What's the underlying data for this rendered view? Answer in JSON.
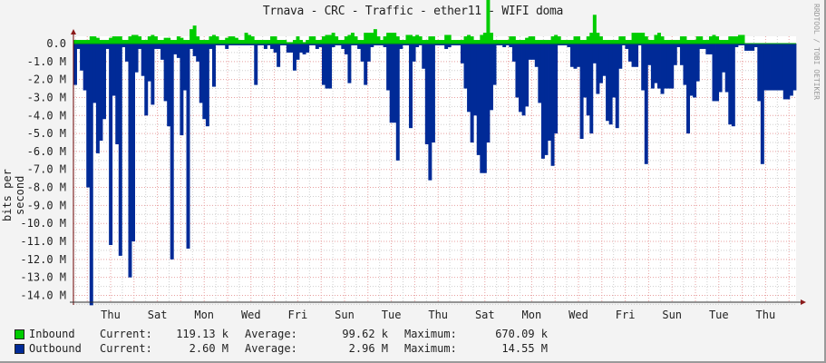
{
  "title": "Trnava - CRC - Traffic - ether11 - WIFI doma",
  "watermark": "RRDTOOL / TOBI OETIKER",
  "colors": {
    "inbound": "#00cc00",
    "outbound": "#002a97",
    "grid_major": "#e8a0a0",
    "grid_minor": "#c8c8c8",
    "axis": "#6b0000",
    "background": "#f3f3f3",
    "plot_bg": "#ffffff"
  },
  "legend": [
    {
      "name": "Inbound",
      "color": "#00cc00",
      "current_label": "Current:",
      "current": "119.13 k",
      "average_label": "Average:",
      "average": "99.62 k",
      "maximum_label": "Maximum:",
      "maximum": "670.09 k"
    },
    {
      "name": "Outbound",
      "color": "#002a97",
      "current_label": "Current:",
      "current": "2.60 M",
      "average_label": "Average:",
      "average": "2.96 M",
      "maximum_label": "Maximum:",
      "maximum": "14.55 M"
    }
  ],
  "chart_data": {
    "type": "area",
    "title": "Trnava - CRC - Traffic - ether11 - WIFI doma",
    "xlabel": "",
    "ylabel": "bits per second",
    "y_tick_labels": [
      "0.0",
      "-1.0 M",
      "-2.0 M",
      "-3.0 M",
      "-4.0 M",
      "-5.0 M",
      "-6.0 M",
      "-7.0 M",
      "-8.0 M",
      "-9.0 M",
      "-10.0 M",
      "-11.0 M",
      "-12.0 M",
      "-13.0 M",
      "-14.0 M"
    ],
    "ylim": [
      -14.6,
      0.3
    ],
    "x_tick_labels": [
      "Thu",
      "Sat",
      "Mon",
      "Wed",
      "Fri",
      "Sun",
      "Tue",
      "Thu",
      "Sat",
      "Mon",
      "Wed",
      "Fri",
      "Sun",
      "Tue",
      "Thu"
    ],
    "grid": true,
    "legend_position": "bottom",
    "series": [
      {
        "name": "Inbound",
        "unit": "M",
        "values": [
          0.05,
          0.05,
          0.05,
          0.05,
          0.05,
          0.1,
          0.1,
          0.08,
          0.05,
          0.05,
          0.05,
          0.08,
          0.1,
          0.1,
          0.1,
          0.05,
          0.05,
          0.1,
          0.12,
          0.12,
          0.1,
          0.05,
          0.05,
          0.1,
          0.12,
          0.1,
          0.05,
          0.05,
          0.08,
          0.08,
          0.05,
          0.05,
          0.1,
          0.08,
          0.05,
          0.05,
          0.2,
          0.25,
          0.1,
          0.05,
          0.05,
          0.05,
          0.1,
          0.12,
          0.1,
          0.05,
          0.05,
          0.08,
          0.1,
          0.1,
          0.08,
          0.05,
          0.05,
          0.15,
          0.12,
          0.1,
          0.05,
          0.05,
          0.05,
          0.05,
          0.05,
          0.1,
          0.1,
          0.05,
          0.05,
          0.05,
          0.02,
          0.02,
          0.05,
          0.1,
          0.05,
          0.02,
          0.05,
          0.1,
          0.1,
          0.05,
          0.05,
          0.1,
          0.12,
          0.12,
          0.15,
          0.1,
          0.05,
          0.05,
          0.1,
          0.12,
          0.15,
          0.1,
          0.05,
          0.05,
          0.15,
          0.15,
          0.15,
          0.2,
          0.1,
          0.05,
          0.1,
          0.15,
          0.15,
          0.15,
          0.1,
          0.05,
          0.05,
          0.12,
          0.12,
          0.1,
          0.12,
          0.1,
          0.05,
          0.05,
          0.1,
          0.1,
          0.05,
          0.05,
          0.05,
          0.12,
          0.12,
          0.05,
          0.05,
          0.05,
          0.05,
          0.1,
          0.12,
          0.1,
          0.05,
          0.05,
          0.12,
          0.15,
          0.67,
          0.15,
          0.05,
          0.05,
          0.05,
          0.05,
          0.05,
          0.1,
          0.1,
          0.05,
          0.05,
          0.05,
          0.08,
          0.1,
          0.1,
          0.05,
          0.05,
          0.05,
          0.05,
          0.05,
          0.1,
          0.12,
          0.1,
          0.05,
          0.05,
          0.05,
          0.05,
          0.1,
          0.1,
          0.05,
          0.05,
          0.1,
          0.15,
          0.4,
          0.15,
          0.1,
          0.05,
          0.05,
          0.05,
          0.05,
          0.05,
          0.1,
          0.1,
          0.05,
          0.05,
          0.15,
          0.15,
          0.15,
          0.15,
          0.1,
          0.05,
          0.05,
          0.12,
          0.15,
          0.1,
          0.05,
          0.05,
          0.05,
          0.05,
          0.05,
          0.1,
          0.1,
          0.05,
          0.05,
          0.05,
          0.1,
          0.1,
          0.05,
          0.05,
          0.1,
          0.12,
          0.1,
          0.05,
          0.05,
          0.05,
          0.1,
          0.1,
          0.1,
          0.12,
          0.12
        ]
      },
      {
        "name": "Outbound",
        "unit": "M",
        "values": [
          2.3,
          0.3,
          1.5,
          2.6,
          8.0,
          14.55,
          3.3,
          6.1,
          5.4,
          4.2,
          0.3,
          11.2,
          2.9,
          5.6,
          11.8,
          0.2,
          1.0,
          13.0,
          11.0,
          1.6,
          0.3,
          1.8,
          4.0,
          2.1,
          3.4,
          0.3,
          0.3,
          0.9,
          3.2,
          4.6,
          12.0,
          0.6,
          0.8,
          5.1,
          2.6,
          11.4,
          0.3,
          0.7,
          1.0,
          3.3,
          4.2,
          4.6,
          0.3,
          2.4,
          0.1,
          0.1,
          0.1,
          0.3,
          0.1,
          0.1,
          0.1,
          0.1,
          0.1,
          0.1,
          0.1,
          0.1,
          2.3,
          0.1,
          0.1,
          0.3,
          0.1,
          0.3,
          0.5,
          1.3,
          0.1,
          0.1,
          0.5,
          0.5,
          1.5,
          0.9,
          0.5,
          0.6,
          0.5,
          0.1,
          0.1,
          0.3,
          0.2,
          2.3,
          2.5,
          2.5,
          0.2,
          0.1,
          0.1,
          0.3,
          0.6,
          2.2,
          0.1,
          0.1,
          0.3,
          1.0,
          2.3,
          1.0,
          0.2,
          0.1,
          0.1,
          0.1,
          0.2,
          2.6,
          4.4,
          4.4,
          6.5,
          0.3,
          0.1,
          0.1,
          4.7,
          1.0,
          0.2,
          0.1,
          1.4,
          5.6,
          7.6,
          5.5,
          0.1,
          0.1,
          0.1,
          0.3,
          0.2,
          0.1,
          0.1,
          0.1,
          1.1,
          2.5,
          3.8,
          5.5,
          4.0,
          6.2,
          7.2,
          7.2,
          5.5,
          3.7,
          2.3,
          0.1,
          0.1,
          0.2,
          0.1,
          0.2,
          1.0,
          3.0,
          3.8,
          4.0,
          3.5,
          0.9,
          0.9,
          1.3,
          3.3,
          6.4,
          6.2,
          5.4,
          6.8,
          5.0,
          0.1,
          0.1,
          0.1,
          0.2,
          1.3,
          1.4,
          1.3,
          5.3,
          3.0,
          4.0,
          5.0,
          1.1,
          2.8,
          2.2,
          1.8,
          4.3,
          4.5,
          3.0,
          4.7,
          1.4,
          0.1,
          0.3,
          1.0,
          1.3,
          1.3,
          0.1,
          2.6,
          6.7,
          1.2,
          2.5,
          2.2,
          2.5,
          2.8,
          2.5,
          2.5,
          2.5,
          1.2,
          0.2,
          1.2,
          2.3,
          5.0,
          2.9,
          3.0,
          2.1,
          0.3,
          0.3,
          0.6,
          0.6,
          3.2,
          3.2,
          2.7,
          1.6,
          2.7,
          4.5,
          4.6,
          0.2,
          0.1,
          0.1,
          0.4,
          0.4,
          0.4,
          0.2,
          3.2,
          6.7,
          2.6,
          2.6,
          2.6,
          2.6,
          2.6,
          2.6,
          3.1,
          3.1,
          2.9,
          2.6
        ]
      }
    ]
  }
}
